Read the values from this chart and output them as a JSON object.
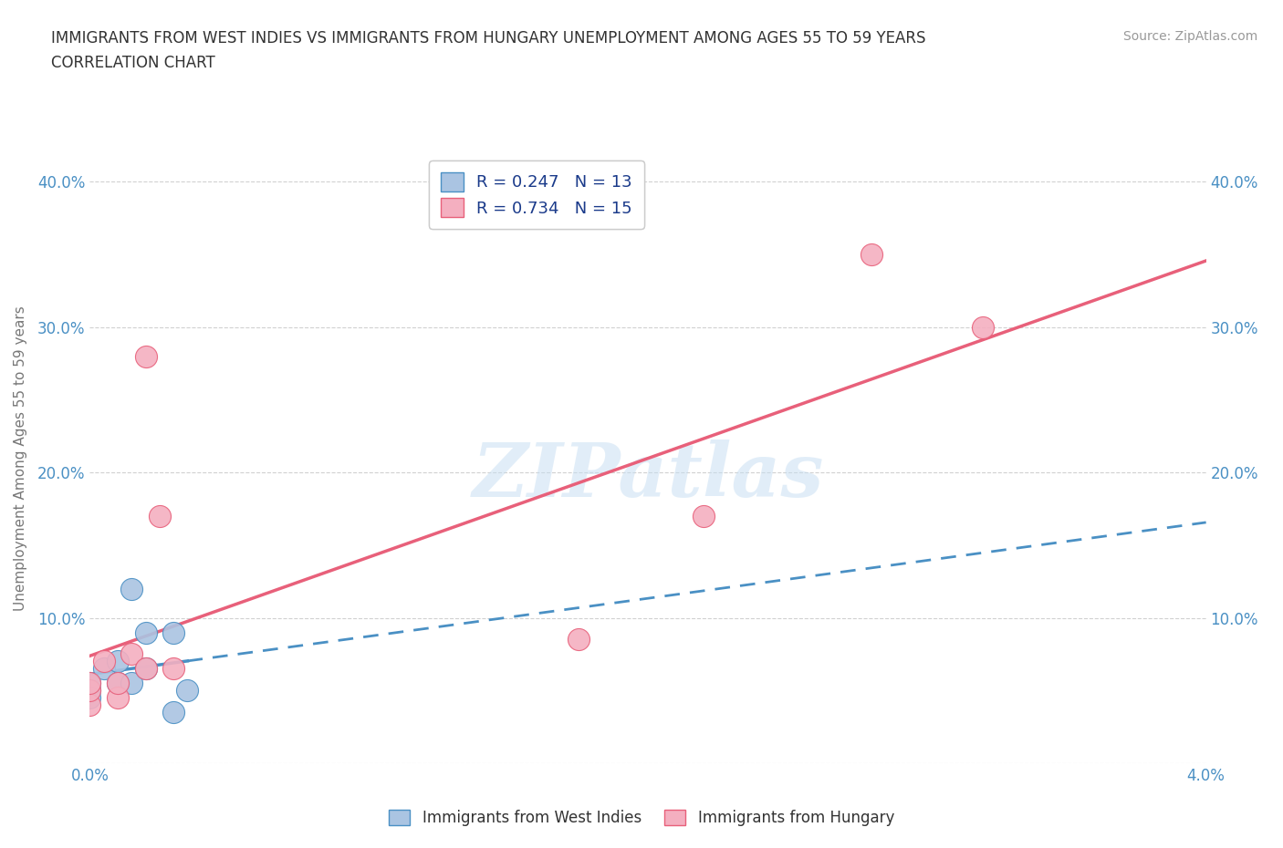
{
  "title_line1": "IMMIGRANTS FROM WEST INDIES VS IMMIGRANTS FROM HUNGARY UNEMPLOYMENT AMONG AGES 55 TO 59 YEARS",
  "title_line2": "CORRELATION CHART",
  "source_text": "Source: ZipAtlas.com",
  "ylabel": "Unemployment Among Ages 55 to 59 years",
  "watermark": "ZIPatlas",
  "xlim": [
    0.0,
    0.04
  ],
  "ylim": [
    0.0,
    0.42
  ],
  "yticks": [
    0.0,
    0.1,
    0.2,
    0.3,
    0.4
  ],
  "ytick_labels": [
    "",
    "10.0%",
    "20.0%",
    "30.0%",
    "40.0%"
  ],
  "xticks": [
    0.0,
    0.01,
    0.02,
    0.03,
    0.04
  ],
  "xtick_labels": [
    "0.0%",
    "",
    "",
    "",
    "4.0%"
  ],
  "west_indies_color": "#aac4e2",
  "west_indies_color_dark": "#4a90c4",
  "hungary_color": "#f4afc0",
  "hungary_color_dark": "#e8607a",
  "west_indies_R": 0.247,
  "west_indies_N": 13,
  "hungary_R": 0.734,
  "hungary_N": 15,
  "west_indies_x": [
    0.0,
    0.0,
    0.0,
    0.0005,
    0.001,
    0.001,
    0.0015,
    0.0015,
    0.002,
    0.002,
    0.003,
    0.003,
    0.0035
  ],
  "west_indies_y": [
    0.055,
    0.05,
    0.045,
    0.065,
    0.055,
    0.07,
    0.12,
    0.055,
    0.065,
    0.09,
    0.035,
    0.09,
    0.05
  ],
  "hungary_x": [
    0.0,
    0.0,
    0.0,
    0.0005,
    0.001,
    0.001,
    0.0015,
    0.002,
    0.002,
    0.0025,
    0.003,
    0.0175,
    0.022,
    0.028,
    0.032
  ],
  "hungary_y": [
    0.04,
    0.05,
    0.055,
    0.07,
    0.045,
    0.055,
    0.075,
    0.065,
    0.28,
    0.17,
    0.065,
    0.085,
    0.17,
    0.35,
    0.3
  ],
  "legend_label_wi": "Immigrants from West Indies",
  "legend_label_hu": "Immigrants from Hungary",
  "background_color": "#ffffff",
  "grid_color": "#cccccc",
  "title_color": "#333333",
  "axis_label_color": "#4a90c4"
}
